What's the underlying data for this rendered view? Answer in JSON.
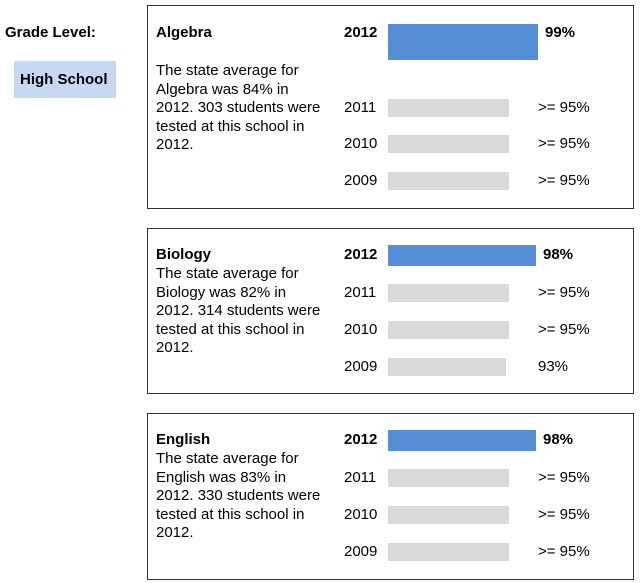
{
  "grade": {
    "label": "Grade Level:",
    "value": "High School"
  },
  "chart_data": {
    "type": "bar",
    "panels": [
      {
        "subject": "Algebra",
        "description": "The state average for Algebra was 84% in 2012. 303 students were tested at this school in 2012.",
        "rows": [
          {
            "year": "2012",
            "value": 99,
            "label": "99%",
            "current": true
          },
          {
            "year": "2011",
            "value": 95,
            "label": ">= 95%",
            "current": false
          },
          {
            "year": "2010",
            "value": 95,
            "label": ">= 95%",
            "current": false
          },
          {
            "year": "2009",
            "value": 95,
            "label": ">= 95%",
            "current": false
          }
        ]
      },
      {
        "subject": "Biology",
        "description": "The state average for Biology was 82% in 2012. 314 students were tested at this school in 2012.",
        "rows": [
          {
            "year": "2012",
            "value": 98,
            "label": "98%",
            "current": true
          },
          {
            "year": "2011",
            "value": 95,
            "label": ">= 95%",
            "current": false
          },
          {
            "year": "2010",
            "value": 95,
            "label": ">= 95%",
            "current": false
          },
          {
            "year": "2009",
            "value": 93,
            "label": "93%",
            "current": false
          }
        ]
      },
      {
        "subject": "English",
        "description": "The state average for English was 83% in 2012. 330 students were tested at this school in 2012.",
        "rows": [
          {
            "year": "2012",
            "value": 98,
            "label": "98%",
            "current": true
          },
          {
            "year": "2011",
            "value": 95,
            "label": ">= 95%",
            "current": false
          },
          {
            "year": "2010",
            "value": 95,
            "label": ">= 95%",
            "current": false
          },
          {
            "year": "2009",
            "value": 95,
            "label": ">= 95%",
            "current": false
          }
        ]
      }
    ],
    "colors": {
      "current": "#558ed5",
      "previous": "#d9d9d9"
    }
  }
}
